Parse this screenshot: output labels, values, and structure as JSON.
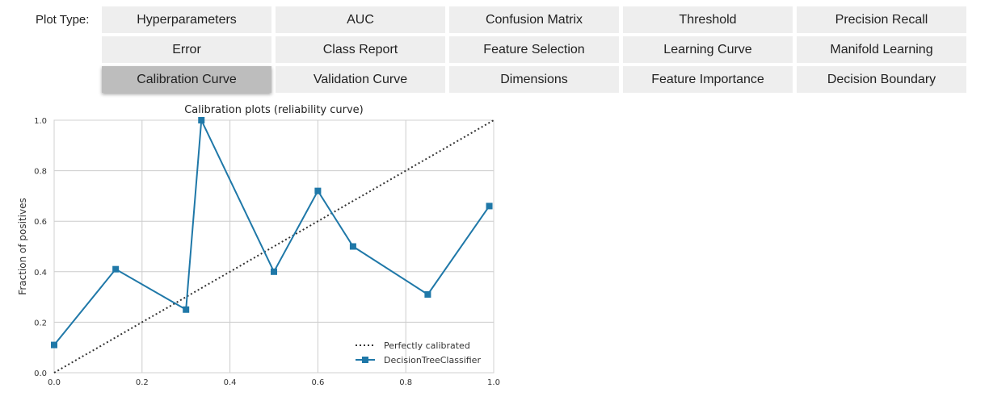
{
  "controls": {
    "label": "Plot Type:",
    "buttons": [
      {
        "label": "Hyperparameters",
        "selected": false
      },
      {
        "label": "AUC",
        "selected": false
      },
      {
        "label": "Confusion Matrix",
        "selected": false
      },
      {
        "label": "Threshold",
        "selected": false
      },
      {
        "label": "Precision Recall",
        "selected": false
      },
      {
        "label": "Error",
        "selected": false
      },
      {
        "label": "Class Report",
        "selected": false
      },
      {
        "label": "Feature Selection",
        "selected": false
      },
      {
        "label": "Learning Curve",
        "selected": false
      },
      {
        "label": "Manifold Learning",
        "selected": false
      },
      {
        "label": "Calibration Curve",
        "selected": true
      },
      {
        "label": "Validation Curve",
        "selected": false
      },
      {
        "label": "Dimensions",
        "selected": false
      },
      {
        "label": "Feature Importance",
        "selected": false
      },
      {
        "label": "Decision Boundary",
        "selected": false
      }
    ]
  },
  "colors": {
    "series": "#1f78a8",
    "reference": "#333333",
    "grid": "#cccccc"
  },
  "chart_data": {
    "type": "line",
    "title": "Calibration plots  (reliability curve)",
    "xlabel": "",
    "ylabel": "Fraction of positives",
    "xlim": [
      0,
      1
    ],
    "ylim": [
      0,
      1
    ],
    "xticks": [
      "0.0",
      "0.2",
      "0.4",
      "0.6",
      "0.8",
      "1.0"
    ],
    "yticks": [
      "0.0",
      "0.2",
      "0.4",
      "0.6",
      "0.8",
      "1.0"
    ],
    "grid": true,
    "legend_position": "bottom-right",
    "series": [
      {
        "name": "Perfectly calibrated",
        "style": "dotted",
        "x": [
          0,
          1
        ],
        "y": [
          0,
          1
        ]
      },
      {
        "name": "DecisionTreeClassifier",
        "style": "line-square-markers",
        "x": [
          0.0,
          0.14,
          0.3,
          0.335,
          0.5,
          0.6,
          0.68,
          0.85,
          0.99
        ],
        "y": [
          0.11,
          0.41,
          0.25,
          1.0,
          0.4,
          0.72,
          0.5,
          0.31,
          0.66
        ]
      }
    ]
  }
}
